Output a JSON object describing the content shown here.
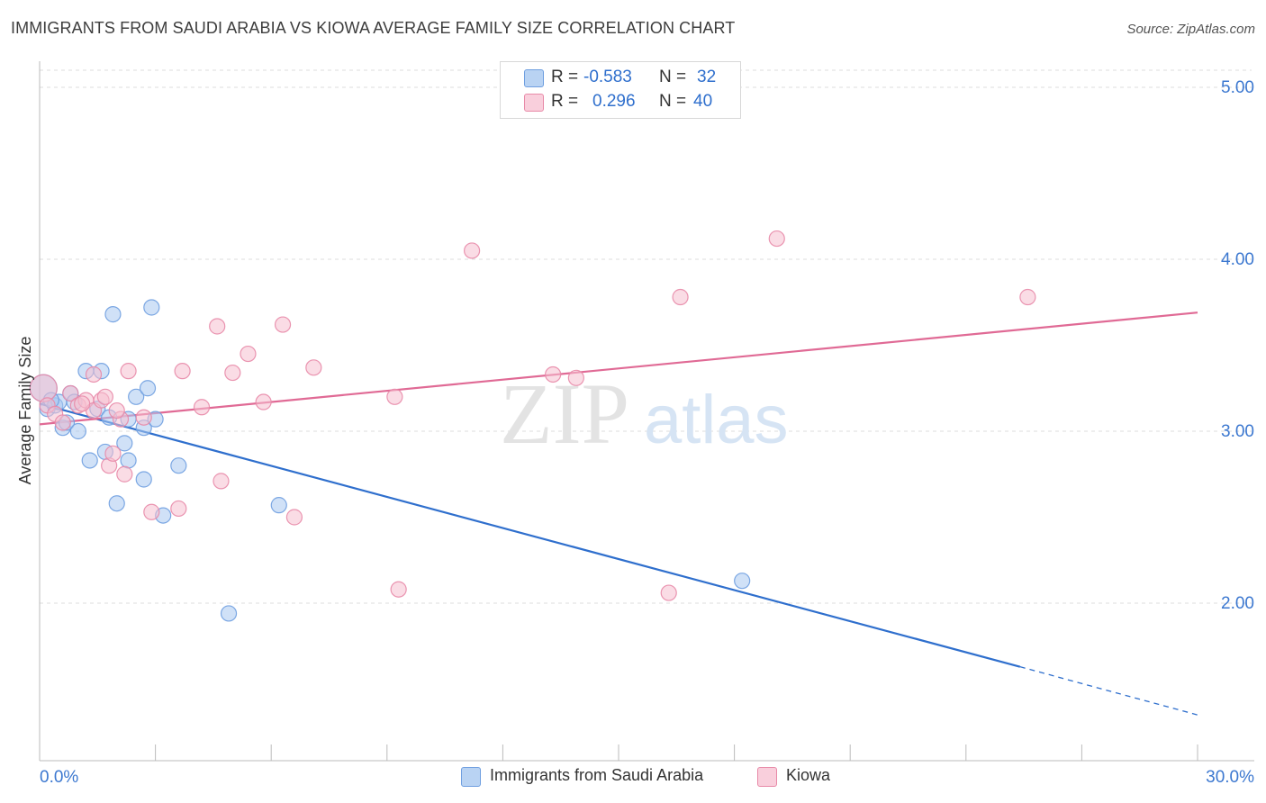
{
  "title": "IMMIGRANTS FROM SAUDI ARABIA VS KIOWA AVERAGE FAMILY SIZE CORRELATION CHART",
  "source": "Source: ZipAtlas.com",
  "watermark": {
    "zip": "ZIP",
    "atlas": "atlas"
  },
  "legend": {
    "r_label": "R =",
    "n_label": "N =",
    "rows": [
      {
        "series": "Immigrants from Saudi Arabia",
        "r": "-0.583",
        "n": "32",
        "color": "#a9c8f0",
        "stroke": "#6f9fe0"
      },
      {
        "series": "Kiowa",
        "r": "0.296",
        "n": "40",
        "color": "#f6bfd0",
        "stroke": "#e88aa8"
      }
    ]
  },
  "chart_data": {
    "type": "scatter",
    "xlabel": "",
    "ylabel": "Average Family Size",
    "xlim": [
      0,
      30
    ],
    "ylim": [
      1.0,
      5.0
    ],
    "x_tick_labels": [
      "0.0%",
      "30.0%"
    ],
    "y_ticks": [
      2.0,
      3.0,
      4.0,
      5.0
    ],
    "y_tick_labels": [
      "2.00",
      "3.00",
      "4.00",
      "5.00"
    ],
    "grid": true,
    "legend_position": "bottom",
    "series": [
      {
        "name": "Immigrants from Saudi Arabia",
        "color": "#a9c8f0",
        "line_color": "#2f6fcd",
        "trend": {
          "x0": 0,
          "y0": 3.16,
          "x1": 25.4,
          "y1": 1.63,
          "dash_to_x": 30,
          "dash_to_y": 1.35
        },
        "points": [
          [
            0.1,
            3.25
          ],
          [
            0.2,
            3.13
          ],
          [
            0.4,
            3.15
          ],
          [
            0.5,
            3.17
          ],
          [
            0.6,
            3.02
          ],
          [
            0.7,
            3.05
          ],
          [
            0.8,
            3.22
          ],
          [
            0.9,
            3.17
          ],
          [
            1.0,
            3.0
          ],
          [
            1.2,
            3.35
          ],
          [
            1.3,
            2.83
          ],
          [
            1.5,
            3.13
          ],
          [
            1.6,
            3.35
          ],
          [
            1.7,
            2.88
          ],
          [
            1.8,
            3.08
          ],
          [
            1.9,
            3.68
          ],
          [
            2.0,
            2.58
          ],
          [
            2.2,
            2.93
          ],
          [
            2.3,
            3.07
          ],
          [
            2.3,
            2.83
          ],
          [
            2.5,
            3.2
          ],
          [
            2.7,
            3.02
          ],
          [
            2.7,
            2.72
          ],
          [
            2.8,
            3.25
          ],
          [
            2.9,
            3.72
          ],
          [
            3.0,
            3.07
          ],
          [
            3.2,
            2.51
          ],
          [
            3.6,
            2.8
          ],
          [
            4.9,
            1.94
          ],
          [
            6.2,
            2.57
          ],
          [
            18.2,
            2.13
          ],
          [
            0.3,
            3.18
          ]
        ]
      },
      {
        "name": "Kiowa",
        "color": "#f6bfd0",
        "line_color": "#e06a95",
        "trend": {
          "x0": 0,
          "y0": 3.04,
          "x1": 30,
          "y1": 3.69
        },
        "points": [
          [
            0.1,
            3.25
          ],
          [
            0.2,
            3.15
          ],
          [
            0.4,
            3.1
          ],
          [
            0.8,
            3.22
          ],
          [
            1.0,
            3.15
          ],
          [
            1.2,
            3.18
          ],
          [
            1.4,
            3.12
          ],
          [
            1.4,
            3.33
          ],
          [
            1.6,
            3.18
          ],
          [
            1.7,
            3.2
          ],
          [
            1.8,
            2.8
          ],
          [
            1.9,
            2.87
          ],
          [
            2.1,
            3.07
          ],
          [
            2.2,
            2.75
          ],
          [
            2.3,
            3.35
          ],
          [
            2.7,
            3.08
          ],
          [
            2.9,
            2.53
          ],
          [
            3.6,
            2.55
          ],
          [
            3.7,
            3.35
          ],
          [
            4.2,
            3.14
          ],
          [
            4.6,
            3.61
          ],
          [
            4.7,
            2.71
          ],
          [
            5.0,
            3.34
          ],
          [
            5.4,
            3.45
          ],
          [
            5.8,
            3.17
          ],
          [
            6.3,
            3.62
          ],
          [
            6.6,
            2.5
          ],
          [
            7.1,
            3.37
          ],
          [
            9.2,
            3.2
          ],
          [
            9.3,
            2.08
          ],
          [
            11.2,
            4.05
          ],
          [
            13.3,
            3.33
          ],
          [
            13.9,
            3.31
          ],
          [
            16.3,
            2.06
          ],
          [
            16.6,
            3.78
          ],
          [
            19.1,
            4.12
          ],
          [
            25.6,
            3.78
          ],
          [
            0.6,
            3.05
          ],
          [
            1.1,
            3.16
          ],
          [
            2.0,
            3.12
          ]
        ]
      }
    ]
  }
}
